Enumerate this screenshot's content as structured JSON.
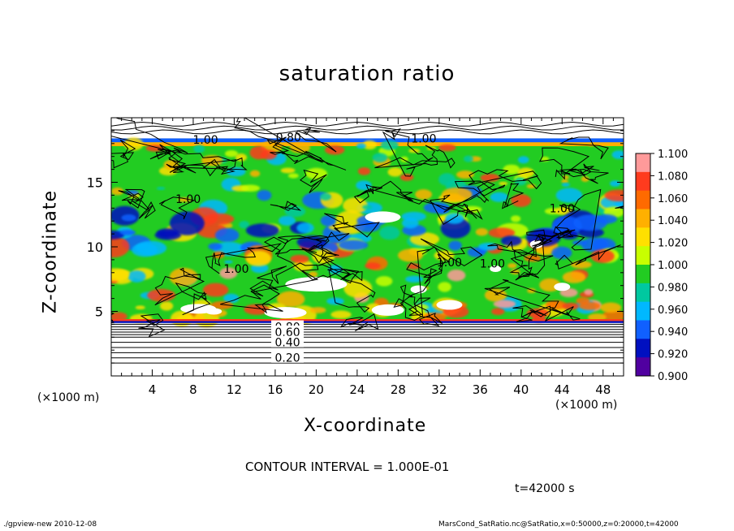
{
  "chart_data": {
    "type": "heatmap",
    "title": "saturation ratio",
    "xlabel": "X-coordinate",
    "ylabel": "Z-coordinate",
    "x_units": "(×1000 m)",
    "y_units": "(×1000 m)",
    "xlim": [
      0,
      50
    ],
    "ylim": [
      0,
      20
    ],
    "x_ticks": [
      4,
      8,
      12,
      16,
      20,
      24,
      28,
      32,
      36,
      40,
      44,
      48
    ],
    "y_ticks": [
      5,
      10,
      15
    ],
    "colorbar": {
      "labels": [
        "1.100",
        "1.080",
        "1.060",
        "1.040",
        "1.020",
        "1.000",
        "0.980",
        "0.960",
        "0.940",
        "0.920",
        "0.900"
      ],
      "colors": [
        "#ff9a9a",
        "#ff3b1e",
        "#ff6a00",
        "#ffb000",
        "#ffe000",
        "#c8ff00",
        "#22cc22",
        "#00c8a0",
        "#00b8ff",
        "#1060ff",
        "#0010c0",
        "#5000a0"
      ]
    },
    "contour_labels": [
      {
        "text": "1.00",
        "x": 9.2,
        "z": 18.3
      },
      {
        "text": "0.80",
        "x": 17.3,
        "z": 18.5
      },
      {
        "text": "1.00",
        "x": 30.5,
        "z": 18.4
      },
      {
        "text": "1.00",
        "x": 7.5,
        "z": 13.7
      },
      {
        "text": "1.00",
        "x": 44.0,
        "z": 13.0
      },
      {
        "text": "1.00",
        "x": 12.2,
        "z": 8.3
      },
      {
        "text": "1.00",
        "x": 33.0,
        "z": 8.8
      },
      {
        "text": "1.00",
        "x": 37.2,
        "z": 8.7
      },
      {
        "text": "0.80",
        "x": 17.2,
        "z": 3.8
      },
      {
        "text": "0.60",
        "x": 17.2,
        "z": 3.4
      },
      {
        "text": "0.40",
        "x": 17.2,
        "z": 2.6
      },
      {
        "text": "0.20",
        "x": 17.2,
        "z": 1.4
      }
    ],
    "contour_interval": "CONTOUR INTERVAL = 1.000E-01",
    "time_label": "t=42000 s"
  },
  "footer": {
    "left": "./gpview-new   2010-12-08",
    "right": "MarsCond_SatRatio.nc@SatRatio,x=0:50000,z=0:20000,t=42000"
  }
}
